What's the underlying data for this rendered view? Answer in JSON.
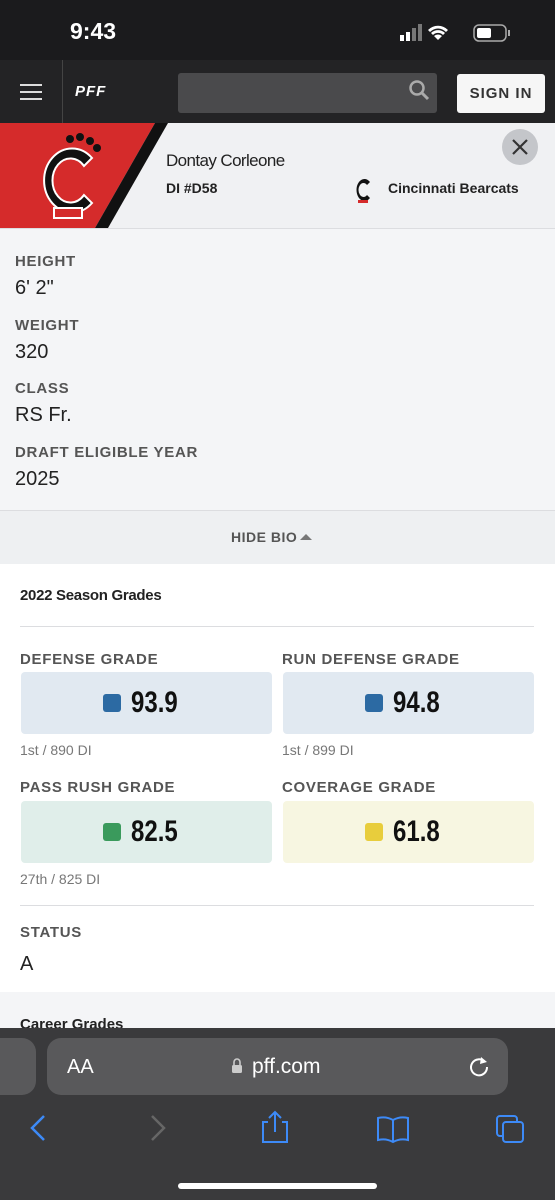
{
  "status_bar": {
    "time": "9:43"
  },
  "nav": {
    "logo": "PFF",
    "sign_in": "SIGN IN"
  },
  "player": {
    "name": "Dontay Corleone",
    "position": "DI #D58",
    "team": "Cincinnati Bearcats"
  },
  "bio": [
    {
      "label": "HEIGHT",
      "value": "6' 2\""
    },
    {
      "label": "WEIGHT",
      "value": "320"
    },
    {
      "label": "CLASS",
      "value": "RS Fr."
    },
    {
      "label": "DRAFT ELIGIBLE YEAR",
      "value": "2025"
    }
  ],
  "bio_toggle": "HIDE BIO",
  "grades": {
    "title": "2022 Season Grades",
    "items": [
      {
        "label": "DEFENSE GRADE",
        "value": "93.9",
        "rank": "1st / 890 DI"
      },
      {
        "label": "RUN DEFENSE GRADE",
        "value": "94.8",
        "rank": "1st / 899 DI"
      },
      {
        "label": "PASS RUSH GRADE",
        "value": "82.5",
        "rank": "27th / 825 DI"
      },
      {
        "label": "COVERAGE GRADE",
        "value": "61.8"
      }
    ]
  },
  "status": {
    "label": "STATUS",
    "value": "A"
  },
  "career_title": "Career Grades",
  "browser": {
    "text_size": "AA",
    "url": "pff.com"
  }
}
